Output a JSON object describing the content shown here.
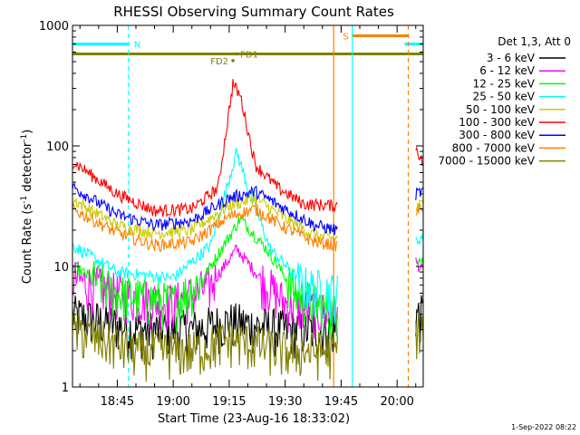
{
  "chart_data": {
    "type": "line",
    "title": "RHESSI Observing Summary Count Rates",
    "ylabel": "Count Rate (s",
    "ylabel_sup1": "-1",
    "ylabel_mid": " detector",
    "ylabel_sup2": "-1",
    "ylabel_end": ")",
    "xlabel": "Start Time (23-Aug-16 18:33:02)",
    "timestamp": "1-Sep-2022 08:22",
    "y_scale": "log",
    "ylim": [
      1,
      1000
    ],
    "y_ticks": [
      "1",
      "10",
      "100",
      "1000"
    ],
    "xlim": [
      "18:33",
      "20:07"
    ],
    "x_ticks": [
      "18:45",
      "19:00",
      "19:15",
      "19:30",
      "19:45",
      "20:00"
    ],
    "legend_title": "Det 1,3, Att 0",
    "legend_placement": "right",
    "flags": [
      {
        "label": "N",
        "color": "#00ffff",
        "start": "18:33",
        "end": "18:48",
        "level": 700
      },
      {
        "label": "N",
        "color": "#00ffff",
        "start": "20:02",
        "end": "20:07",
        "level": 700
      },
      {
        "label": "S",
        "color": "#ff8000",
        "start": "19:48",
        "end": "20:03",
        "level": 820
      },
      {
        "label": "",
        "color": "#808000",
        "start": "18:33",
        "end": "20:07",
        "level": 580
      },
      {
        "label": "FD1",
        "color": "#808000",
        "time": "19:17",
        "level": 580
      },
      {
        "label": "FD2",
        "color": "#808000",
        "time": "19:16",
        "level": 510
      }
    ],
    "vertical_lines": [
      {
        "time": "18:48",
        "color": "#00ffff",
        "style": "dashed"
      },
      {
        "time": "19:43",
        "color": "#ff8000",
        "style": "solid"
      },
      {
        "time": "19:48",
        "color": "#00ffff",
        "style": "solid"
      },
      {
        "time": "20:03",
        "color": "#ff8000",
        "style": "dashed"
      },
      {
        "time": "20:07",
        "color": "#00ffff",
        "style": "dashed"
      }
    ],
    "segments": [
      [
        "18:33",
        "19:44"
      ],
      [
        "20:05",
        "20:07"
      ]
    ],
    "series": [
      {
        "name": "3 - 6 keV",
        "color": "#000000",
        "values": [
          [
            "18:33",
            4
          ],
          [
            "18:50",
            3
          ],
          [
            "19:05",
            3
          ],
          [
            "19:15",
            3.5
          ],
          [
            "19:30",
            3
          ],
          [
            "19:44",
            3
          ],
          [
            "20:05",
            4
          ],
          [
            "20:07",
            4
          ]
        ]
      },
      {
        "name": "6 - 12 keV",
        "color": "#ff00ff",
        "values": [
          [
            "18:33",
            8
          ],
          [
            "18:45",
            6
          ],
          [
            "19:00",
            5
          ],
          [
            "19:10",
            7
          ],
          [
            "19:17",
            14
          ],
          [
            "19:22",
            9
          ],
          [
            "19:30",
            5
          ],
          [
            "19:44",
            4
          ],
          [
            "20:05",
            11
          ],
          [
            "20:07",
            9
          ]
        ]
      },
      {
        "name": "12 - 25 keV",
        "color": "#00ff00",
        "values": [
          [
            "18:33",
            10
          ],
          [
            "18:45",
            6
          ],
          [
            "19:00",
            5
          ],
          [
            "19:08",
            8
          ],
          [
            "19:18",
            25
          ],
          [
            "19:25",
            14
          ],
          [
            "19:33",
            6
          ],
          [
            "19:44",
            4
          ],
          [
            "20:05",
            12
          ],
          [
            "20:07",
            11
          ]
        ]
      },
      {
        "name": "25 - 50 keV",
        "color": "#00ffff",
        "values": [
          [
            "18:33",
            15
          ],
          [
            "18:45",
            9
          ],
          [
            "19:00",
            8
          ],
          [
            "19:10",
            15
          ],
          [
            "19:17",
            90
          ],
          [
            "19:20",
            45
          ],
          [
            "19:26",
            14
          ],
          [
            "19:35",
            7
          ],
          [
            "19:44",
            6
          ],
          [
            "20:05",
            16
          ],
          [
            "20:07",
            18
          ]
        ]
      },
      {
        "name": "50 - 100 keV",
        "color": "#cccc00",
        "values": [
          [
            "18:33",
            36
          ],
          [
            "18:45",
            22
          ],
          [
            "18:55",
            19
          ],
          [
            "19:05",
            20
          ],
          [
            "19:15",
            32
          ],
          [
            "19:22",
            37
          ],
          [
            "19:30",
            25
          ],
          [
            "19:38",
            18
          ],
          [
            "19:44",
            17
          ],
          [
            "20:05",
            30
          ],
          [
            "20:07",
            34
          ]
        ]
      },
      {
        "name": "100 - 300 keV",
        "color": "#ff0000",
        "values": [
          [
            "18:33",
            75
          ],
          [
            "18:45",
            40
          ],
          [
            "18:55",
            29
          ],
          [
            "19:05",
            30
          ],
          [
            "19:12",
            45
          ],
          [
            "19:16",
            330
          ],
          [
            "19:18",
            260
          ],
          [
            "19:22",
            70
          ],
          [
            "19:28",
            45
          ],
          [
            "19:35",
            33
          ],
          [
            "19:44",
            32
          ],
          [
            "20:05",
            100
          ],
          [
            "20:07",
            70
          ]
        ]
      },
      {
        "name": "300 - 800 keV",
        "color": "#0000ff",
        "values": [
          [
            "18:33",
            46
          ],
          [
            "18:45",
            27
          ],
          [
            "18:55",
            22
          ],
          [
            "19:05",
            24
          ],
          [
            "19:15",
            37
          ],
          [
            "19:22",
            42
          ],
          [
            "19:30",
            30
          ],
          [
            "19:38",
            22
          ],
          [
            "19:44",
            20
          ],
          [
            "20:05",
            40
          ],
          [
            "20:07",
            42
          ]
        ]
      },
      {
        "name": "800 - 7000 keV",
        "color": "#ff8000",
        "values": [
          [
            "18:33",
            30
          ],
          [
            "18:45",
            19
          ],
          [
            "18:55",
            15
          ],
          [
            "19:05",
            16
          ],
          [
            "19:15",
            26
          ],
          [
            "19:22",
            30
          ],
          [
            "19:30",
            21
          ],
          [
            "19:38",
            16
          ],
          [
            "19:44",
            15
          ],
          [
            "20:05",
            28
          ],
          [
            "20:07",
            32
          ]
        ]
      },
      {
        "name": "7000 - 15000 keV",
        "color": "#808000",
        "values": [
          [
            "18:33",
            3
          ],
          [
            "18:50",
            2
          ],
          [
            "19:05",
            2
          ],
          [
            "19:15",
            2.5
          ],
          [
            "19:30",
            2
          ],
          [
            "19:44",
            2
          ],
          [
            "20:05",
            3
          ],
          [
            "20:07",
            3
          ]
        ]
      }
    ]
  }
}
